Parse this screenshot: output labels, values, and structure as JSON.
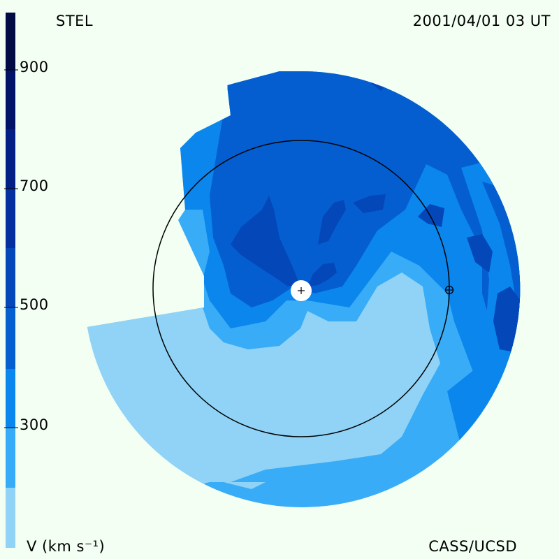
{
  "header": {
    "source": "STEL",
    "datetime": "2001/04/01 03 UT"
  },
  "footer": {
    "unit_label": "V (km s⁻¹)",
    "credit": "CASS/UCSD"
  },
  "colorbar": {
    "ticks": [
      "900",
      "700",
      "500",
      "300"
    ],
    "colors": [
      "#90d3f6",
      "#36abf7",
      "#0a87ee",
      "#045fcf",
      "#0347b8",
      "#03309e",
      "#021f86",
      "#011367",
      "#010b44",
      "#010524"
    ]
  },
  "map": {
    "colors": {
      "level1": "#90d3f6",
      "level2": "#38acf6",
      "level3": "#0a86ec",
      "level4": "#055ed0",
      "level5": "#0347b9",
      "level6": "#03309f"
    },
    "markers": [
      "sun-marker",
      "earth-marker"
    ]
  }
}
